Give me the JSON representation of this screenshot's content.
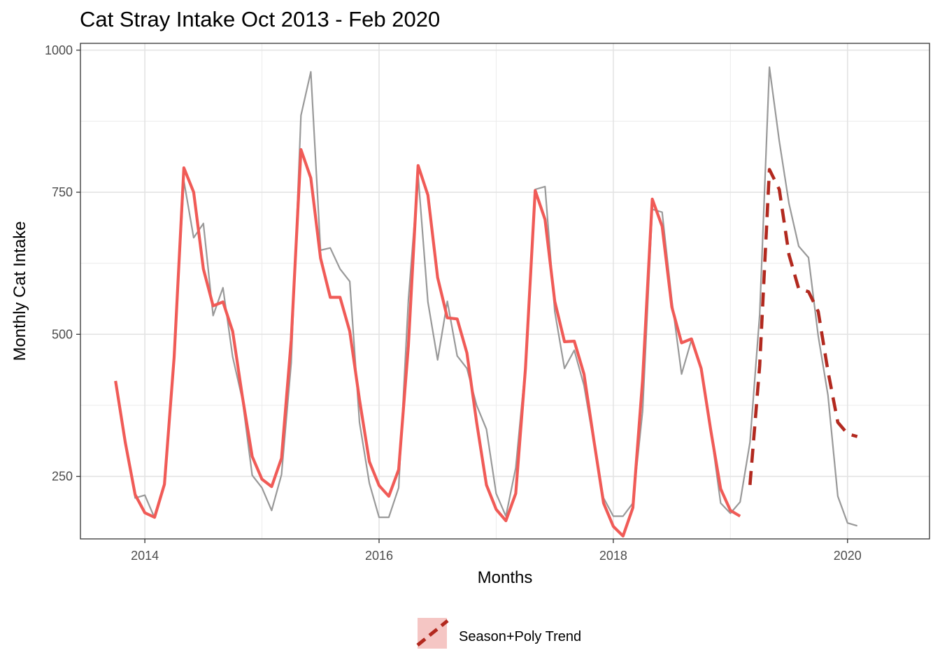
{
  "chart_data": {
    "type": "line",
    "title": "Cat Stray Intake Oct 2013 - Feb 2020",
    "xlabel": "Months",
    "ylabel": "Monthly Cat Intake",
    "xlim": [
      2013.45,
      2020.7
    ],
    "ylim": [
      140,
      1012
    ],
    "x_ticks": [
      2014,
      2016,
      2018,
      2020
    ],
    "x_tick_labels": [
      "2014",
      "2016",
      "2018",
      "2020"
    ],
    "y_ticks": [
      250,
      500,
      750,
      1000
    ],
    "y_tick_labels": [
      "250",
      "500",
      "750",
      "1000"
    ],
    "grid": true,
    "legend_position": "bottom",
    "legend": [
      {
        "label": "Season+Poly Trend",
        "color": "#b2291f",
        "style": "dashed"
      }
    ],
    "series": [
      {
        "role": "observed",
        "color": "#999999",
        "style": "solid",
        "x": [
          2013.75,
          2013.833,
          2013.917,
          2014.0,
          2014.083,
          2014.167,
          2014.25,
          2014.333,
          2014.417,
          2014.5,
          2014.583,
          2014.667,
          2014.75,
          2014.833,
          2014.917,
          2015.0,
          2015.083,
          2015.167,
          2015.25,
          2015.333,
          2015.417,
          2015.5,
          2015.583,
          2015.667,
          2015.75,
          2015.833,
          2015.917,
          2016.0,
          2016.083,
          2016.167,
          2016.25,
          2016.333,
          2016.417,
          2016.5,
          2016.583,
          2016.667,
          2016.75,
          2016.833,
          2016.917,
          2017.0,
          2017.083,
          2017.167,
          2017.25,
          2017.333,
          2017.417,
          2017.5,
          2017.583,
          2017.667,
          2017.75,
          2017.833,
          2017.917,
          2018.0,
          2018.083,
          2018.167,
          2018.25,
          2018.333,
          2018.417,
          2018.5,
          2018.583,
          2018.667,
          2018.75,
          2018.833,
          2018.917,
          2019.0,
          2019.083,
          2019.167,
          2019.25,
          2019.333,
          2019.417,
          2019.5,
          2019.583,
          2019.667,
          2019.75,
          2019.833,
          2019.917,
          2020.0,
          2020.083
        ],
        "y": [
          418,
          315,
          212,
          217,
          177,
          236,
          457,
          770,
          670,
          695,
          533,
          582,
          460,
          385,
          252,
          230,
          190,
          253,
          450,
          885,
          962,
          648,
          652,
          615,
          593,
          345,
          238,
          178,
          178,
          230,
          560,
          780,
          557,
          455,
          558,
          462,
          440,
          375,
          333,
          220,
          180,
          265,
          445,
          755,
          760,
          540,
          440,
          472,
          410,
          310,
          212,
          180,
          180,
          203,
          365,
          720,
          715,
          560,
          430,
          490,
          440,
          330,
          203,
          185,
          205,
          310,
          535,
          970,
          840,
          730,
          655,
          635,
          497,
          393,
          215,
          168,
          163
        ]
      },
      {
        "role": "fitted",
        "color": "#f05b57",
        "style": "solid",
        "x": [
          2013.75,
          2013.833,
          2013.917,
          2014.0,
          2014.083,
          2014.167,
          2014.25,
          2014.333,
          2014.417,
          2014.5,
          2014.583,
          2014.667,
          2014.75,
          2014.833,
          2014.917,
          2015.0,
          2015.083,
          2015.167,
          2015.25,
          2015.333,
          2015.417,
          2015.5,
          2015.583,
          2015.667,
          2015.75,
          2015.833,
          2015.917,
          2016.0,
          2016.083,
          2016.167,
          2016.25,
          2016.333,
          2016.417,
          2016.5,
          2016.583,
          2016.667,
          2016.75,
          2016.833,
          2016.917,
          2017.0,
          2017.083,
          2017.167,
          2017.25,
          2017.333,
          2017.417,
          2017.5,
          2017.583,
          2017.667,
          2017.75,
          2017.833,
          2017.917,
          2018.0,
          2018.083,
          2018.167,
          2018.25,
          2018.333,
          2018.417,
          2018.5,
          2018.583,
          2018.667,
          2018.75,
          2018.833,
          2018.917,
          2019.0,
          2019.083
        ],
        "y": [
          418,
          310,
          218,
          186,
          178,
          236,
          460,
          793,
          750,
          615,
          550,
          557,
          505,
          390,
          285,
          245,
          232,
          282,
          490,
          825,
          775,
          634,
          565,
          565,
          505,
          385,
          276,
          234,
          215,
          262,
          480,
          797,
          745,
          600,
          529,
          527,
          467,
          345,
          235,
          192,
          172,
          220,
          440,
          753,
          702,
          558,
          487,
          488,
          430,
          315,
          203,
          162,
          145,
          195,
          420,
          738,
          690,
          548,
          485,
          492,
          440,
          330,
          228,
          190,
          180
        ]
      },
      {
        "role": "forecast",
        "name": "Season+Poly Trend",
        "color": "#b2291f",
        "style": "dashed",
        "x": [
          2019.167,
          2019.25,
          2019.333,
          2019.417,
          2019.5,
          2019.583,
          2019.667,
          2019.75,
          2019.833,
          2019.917,
          2020.0,
          2020.083
        ],
        "y": [
          235,
          445,
          790,
          755,
          640,
          580,
          575,
          540,
          435,
          345,
          325,
          320
        ]
      }
    ]
  }
}
